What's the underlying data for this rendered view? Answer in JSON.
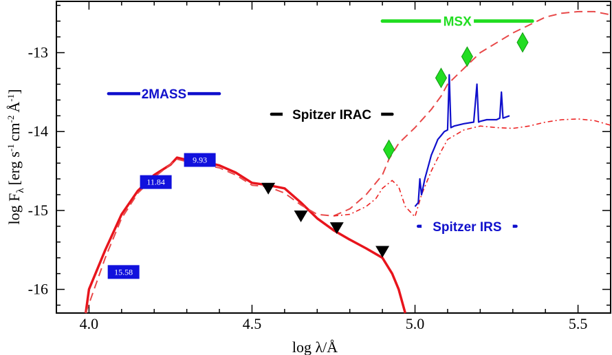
{
  "chart_data": {
    "type": "line",
    "xlabel": "log λ/Å",
    "ylabel": "log F",
    "ylabel_sub": "λ",
    "ylabel_units": "[erg s",
    "ylabel_units_tail": "cm",
    "ylabel_units_tail2": "Å",
    "ylabel_sup1": "-1",
    "ylabel_sup2": "-2",
    "ylabel_sup3": "-1",
    "xlim": [
      3.9,
      5.6
    ],
    "ylim": [
      -16.3,
      -12.35
    ],
    "xticks": [
      4.0,
      4.5,
      5.0,
      5.5
    ],
    "xtick_labels": [
      "4.0",
      "4.5",
      "5.0",
      "5.5"
    ],
    "yticks": [
      -16,
      -15,
      -14,
      -13
    ],
    "ytick_labels": [
      "-16",
      "-15",
      "-14",
      "-13"
    ],
    "colors": {
      "model_solid": "#e8141c",
      "model_dashed": "#e84848",
      "model_dashdot": "#ec2020",
      "irs_spectrum": "#1010cc",
      "msx": "#22dd22",
      "twomass": "#1010cc",
      "irac": "#000000",
      "photometry_box": "#1111dd",
      "upper_limits": "#000000"
    },
    "series": [
      {
        "style": "solid",
        "x": [
          3.99,
          4.0,
          4.05,
          4.1,
          4.15,
          4.2,
          4.25,
          4.27,
          4.3,
          4.35,
          4.4,
          4.45,
          4.5,
          4.55,
          4.6,
          4.65,
          4.7,
          4.75,
          4.8,
          4.85,
          4.9,
          4.93,
          4.95,
          4.97
        ],
        "y": [
          -16.3,
          -16.0,
          -15.5,
          -15.05,
          -14.75,
          -14.55,
          -14.42,
          -14.33,
          -14.36,
          -14.38,
          -14.43,
          -14.52,
          -14.65,
          -14.68,
          -14.72,
          -14.9,
          -15.1,
          -15.25,
          -15.37,
          -15.48,
          -15.6,
          -15.8,
          -16.0,
          -16.3
        ]
      },
      {
        "style": "dashed",
        "x": [
          3.99,
          4.05,
          4.1,
          4.15,
          4.2,
          4.27,
          4.3,
          4.35,
          4.4,
          4.45,
          4.5,
          4.55,
          4.6,
          4.65,
          4.7,
          4.75,
          4.8,
          4.85,
          4.9,
          4.92,
          4.95,
          5.0,
          5.05,
          5.08,
          5.1,
          5.15,
          5.2,
          5.3,
          5.4,
          5.45,
          5.5,
          5.55,
          5.6
        ],
        "y": [
          -16.3,
          -15.6,
          -15.1,
          -14.78,
          -14.58,
          -14.35,
          -14.38,
          -14.42,
          -14.46,
          -14.55,
          -14.68,
          -14.7,
          -14.78,
          -14.93,
          -15.05,
          -15.07,
          -14.98,
          -14.8,
          -14.55,
          -14.35,
          -14.15,
          -13.95,
          -13.72,
          -13.55,
          -13.4,
          -13.2,
          -13.0,
          -12.75,
          -12.55,
          -12.5,
          -12.48,
          -12.48,
          -12.52
        ]
      },
      {
        "style": "dashdot",
        "x": [
          4.75,
          4.8,
          4.85,
          4.88,
          4.9,
          4.93,
          4.95,
          4.97,
          5.0,
          5.02,
          5.05,
          5.08,
          5.1,
          5.15,
          5.2,
          5.25,
          5.3,
          5.35,
          5.4,
          5.45,
          5.5,
          5.55,
          5.6
        ],
        "y": [
          -15.07,
          -15.05,
          -14.95,
          -14.85,
          -14.72,
          -14.62,
          -14.7,
          -14.95,
          -15.08,
          -14.8,
          -14.5,
          -14.25,
          -14.1,
          -13.98,
          -13.93,
          -13.95,
          -13.96,
          -13.93,
          -13.88,
          -13.85,
          -13.84,
          -13.86,
          -13.92
        ]
      },
      {
        "style": "irs",
        "x": [
          5.0,
          5.01,
          5.015,
          5.02,
          5.03,
          5.04,
          5.05,
          5.06,
          5.07,
          5.08,
          5.09,
          5.1,
          5.105,
          5.11,
          5.12,
          5.15,
          5.18,
          5.19,
          5.195,
          5.2,
          5.22,
          5.25,
          5.26,
          5.265,
          5.27,
          5.29
        ],
        "y": [
          -14.95,
          -14.9,
          -14.6,
          -14.8,
          -14.6,
          -14.45,
          -14.3,
          -14.2,
          -14.1,
          -14.05,
          -14.0,
          -13.98,
          -13.28,
          -13.95,
          -13.93,
          -13.9,
          -13.88,
          -13.4,
          -13.88,
          -13.87,
          -13.85,
          -13.85,
          -13.83,
          -13.5,
          -13.83,
          -13.8
        ]
      }
    ],
    "msx_points": {
      "x": [
        4.92,
        5.08,
        5.16,
        5.33
      ],
      "y": [
        -14.23,
        -13.32,
        -13.05,
        -12.87
      ]
    },
    "upper_limits": {
      "x": [
        4.55,
        4.65,
        4.76,
        4.9
      ],
      "y": [
        -14.72,
        -15.07,
        -15.22,
        -15.52
      ]
    },
    "bands": [
      {
        "label": "2MASS",
        "x0": 4.06,
        "x1": 4.4,
        "y": -13.52
      },
      {
        "label": "Spitzer IRAC",
        "x0": 4.56,
        "x1": 4.93,
        "y": -13.78
      },
      {
        "label": "MSX",
        "x0": 4.9,
        "x1": 5.36,
        "y": -12.6
      },
      {
        "label": "Spitzer IRS",
        "x0": 5.01,
        "x1": 5.31,
        "y": -15.2
      }
    ],
    "photometry_labels": [
      {
        "text": "15.58",
        "x": 4.106,
        "y": -15.78
      },
      {
        "text": "11.84",
        "x": 4.205,
        "y": -14.64
      },
      {
        "text": "9.93",
        "x": 4.34,
        "y": -14.36
      }
    ]
  }
}
